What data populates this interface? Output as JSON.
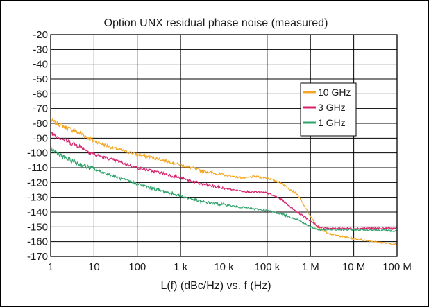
{
  "chart_data": {
    "type": "line",
    "title": "Option UNX residual phase noise (measured)",
    "xlabel": "L(f) (dBc/Hz) vs. f (Hz)",
    "ylabel": "",
    "x_scale": "log",
    "xlim": [
      1,
      100000000
    ],
    "ylim": [
      -170,
      -20
    ],
    "grid": true,
    "legend_position": "upper-right",
    "x_ticks": [
      {
        "value": 1,
        "label": "1"
      },
      {
        "value": 10,
        "label": "10"
      },
      {
        "value": 100,
        "label": "100"
      },
      {
        "value": 1000,
        "label": "1 k"
      },
      {
        "value": 10000,
        "label": "10 k"
      },
      {
        "value": 100000,
        "label": "100 k"
      },
      {
        "value": 1000000,
        "label": "1 M"
      },
      {
        "value": 10000000,
        "label": "10 M"
      },
      {
        "value": 100000000,
        "label": "100 M"
      }
    ],
    "y_ticks": [
      -20,
      -30,
      -40,
      -50,
      -60,
      -70,
      -80,
      -90,
      -100,
      -110,
      -120,
      -130,
      -140,
      -150,
      -160,
      -170
    ],
    "series": [
      {
        "name": "10 GHz",
        "color": "#f5a623",
        "x": [
          1,
          2,
          5,
          10,
          30,
          100,
          300,
          1000,
          3000,
          10000,
          30000,
          50000,
          100000,
          200000,
          500000,
          1000000,
          1500000,
          3000000,
          10000000,
          30000000,
          100000000
        ],
        "y": [
          -78,
          -82,
          -87,
          -92,
          -97,
          -101,
          -104,
          -108,
          -112,
          -115,
          -117,
          -116,
          -117,
          -120,
          -128,
          -143,
          -151,
          -155,
          -158,
          -160,
          -162
        ]
      },
      {
        "name": "3 GHz",
        "color": "#d6246e",
        "x": [
          1,
          2,
          5,
          10,
          30,
          100,
          300,
          1000,
          3000,
          10000,
          30000,
          100000,
          200000,
          500000,
          1000000,
          1500000,
          3000000,
          10000000,
          30000000,
          100000000
        ],
        "y": [
          -86,
          -91,
          -96,
          -101,
          -105,
          -110,
          -113,
          -117,
          -121,
          -124,
          -126,
          -127,
          -131,
          -140,
          -146,
          -150,
          -151,
          -151,
          -151,
          -151
        ]
      },
      {
        "name": "1 GHz",
        "color": "#2fa36b",
        "x": [
          1,
          2,
          5,
          10,
          30,
          100,
          300,
          1000,
          3000,
          10000,
          30000,
          100000,
          200000,
          500000,
          1000000,
          1500000,
          3000000,
          10000000,
          30000000,
          100000000
        ],
        "y": [
          -97,
          -103,
          -108,
          -111,
          -116,
          -121,
          -125,
          -129,
          -133,
          -135,
          -137,
          -139,
          -141,
          -145,
          -150,
          -152,
          -152,
          -152,
          -152,
          -153
        ]
      }
    ]
  }
}
